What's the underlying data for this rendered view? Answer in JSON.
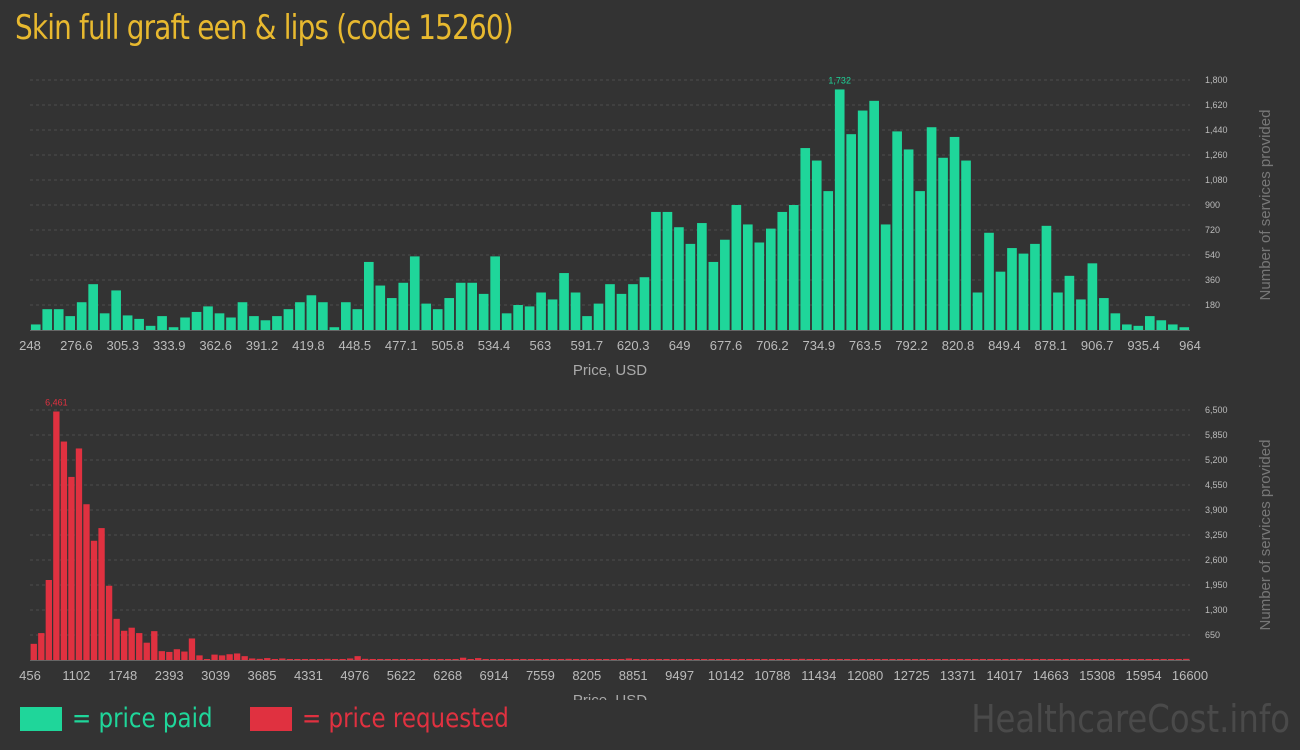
{
  "title": "Skin full graft een & lips (code 15260)",
  "title_color": "#e8b92f",
  "paid_color": "#1fd69a",
  "requested_color": "#e03140",
  "legend": {
    "paid_label": "= price paid",
    "requested_label": "= price requested"
  },
  "watermark": "HealthcareCost.info",
  "chart_data": [
    {
      "type": "bar",
      "series": [
        {
          "name": "price paid",
          "values": [
            40,
            150,
            150,
            100,
            200,
            330,
            120,
            285,
            105,
            80,
            30,
            100,
            20,
            90,
            130,
            170,
            120,
            90,
            200,
            100,
            70,
            100,
            150,
            200,
            250,
            200,
            20,
            200,
            150,
            490,
            320,
            230,
            340,
            530,
            190,
            150,
            230,
            340,
            340,
            260,
            530,
            120,
            180,
            170,
            270,
            220,
            410,
            270,
            100,
            190,
            330,
            260,
            330,
            380,
            850,
            850,
            740,
            620,
            770,
            490,
            650,
            900,
            760,
            630,
            730,
            850,
            900,
            1310,
            1220,
            1000,
            1732,
            1410,
            1580,
            1650,
            760,
            1430,
            1300,
            1000,
            1460,
            1240,
            1390,
            1220,
            270,
            700,
            420,
            590,
            550,
            620,
            750,
            270,
            390,
            220,
            480,
            230,
            120,
            40,
            30,
            100,
            70,
            40,
            20
          ]
        }
      ],
      "x_tick_labels": [
        "248",
        "276.6",
        "305.3",
        "333.9",
        "362.6",
        "391.2",
        "419.8",
        "448.5",
        "477.1",
        "505.8",
        "534.4",
        "563",
        "591.7",
        "620.3",
        "649",
        "677.6",
        "706.2",
        "734.9",
        "763.5",
        "792.2",
        "820.8",
        "849.4",
        "878.1",
        "906.7",
        "935.4",
        "964"
      ],
      "y_tick_labels": [
        "180",
        "360",
        "540",
        "720",
        "900",
        "1,080",
        "1,260",
        "1,440",
        "1,620",
        "1,800"
      ],
      "ylim": [
        0,
        1800
      ],
      "xlabel": "Price, USD",
      "ylabel": "Number of services provided",
      "peak_label": "1,732",
      "grid": true
    },
    {
      "type": "bar",
      "series": [
        {
          "name": "price requested",
          "values": [
            420,
            700,
            2080,
            6461,
            5680,
            4760,
            5500,
            4050,
            3100,
            3430,
            1930,
            1070,
            760,
            840,
            700,
            450,
            750,
            230,
            210,
            280,
            220,
            560,
            120,
            20,
            140,
            120,
            150,
            170,
            100,
            40,
            30,
            50,
            20,
            40,
            10,
            20,
            10,
            20,
            10,
            30,
            20,
            15,
            40,
            100,
            30,
            10,
            10,
            10,
            10,
            10,
            10,
            20,
            10,
            10,
            10,
            10,
            10,
            60,
            20,
            50,
            10,
            10,
            10,
            10,
            10,
            20,
            10,
            10,
            10,
            10,
            20,
            30,
            10,
            10,
            10,
            10,
            10,
            10,
            10,
            40,
            10,
            10,
            10,
            10,
            10,
            10,
            10,
            10,
            10,
            10,
            10,
            10,
            10,
            10,
            10,
            10,
            10,
            10,
            10,
            10,
            10,
            10,
            30,
            10,
            10,
            10,
            10,
            10,
            10,
            10,
            10,
            10,
            10,
            10,
            10,
            10,
            10,
            10,
            10,
            10,
            10,
            10,
            10,
            10,
            10,
            10,
            10,
            10,
            10,
            10,
            10,
            30,
            10,
            10,
            10,
            10,
            10,
            10,
            10,
            10,
            10,
            10,
            10,
            10,
            10,
            10,
            10,
            10,
            10,
            10,
            10,
            10,
            10,
            30
          ]
        }
      ],
      "x_tick_labels": [
        "456",
        "1102",
        "1748",
        "2393",
        "3039",
        "3685",
        "4331",
        "4976",
        "5622",
        "6268",
        "6914",
        "7559",
        "8205",
        "8851",
        "9497",
        "10142",
        "10788",
        "11434",
        "12080",
        "12725",
        "13371",
        "14017",
        "14663",
        "15308",
        "15954",
        "16600"
      ],
      "y_tick_labels": [
        "650",
        "1,300",
        "1,950",
        "2,600",
        "3,250",
        "3,900",
        "4,550",
        "5,200",
        "5,850",
        "6,500"
      ],
      "ylim": [
        0,
        6500
      ],
      "xlabel": "Price, USD",
      "ylabel": "Number of services provided",
      "peak_label": "6,461",
      "grid": true
    }
  ]
}
